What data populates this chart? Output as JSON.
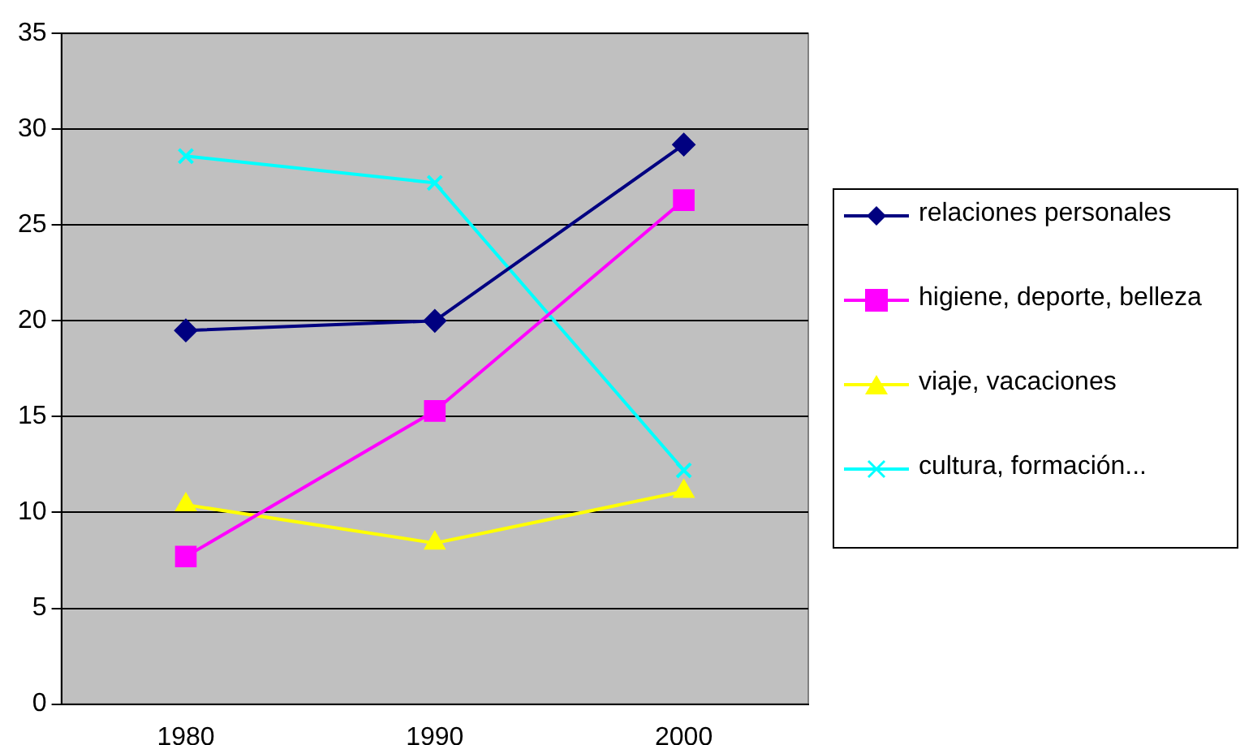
{
  "chart_data": {
    "type": "line",
    "categories": [
      "1980",
      "1990",
      "2000"
    ],
    "ylim": [
      0,
      35
    ],
    "yticks": [
      0,
      5,
      10,
      15,
      20,
      25,
      30,
      35
    ],
    "grid": "y",
    "legend": "right",
    "line_style": "solid",
    "series": [
      {
        "name": "relaciones personales",
        "color": "#000080",
        "marker": "diamond",
        "values": [
          19.5,
          20,
          29.2
        ]
      },
      {
        "name": "higiene, deporte, belleza",
        "color": "#ff00ff",
        "marker": "square",
        "values": [
          7.7,
          15.3,
          26.3
        ]
      },
      {
        "name": "viaje, vacaciones",
        "color": "#ffff00",
        "marker": "triangle",
        "values": [
          10.4,
          8.4,
          11.1
        ]
      },
      {
        "name": "cultura, formación...",
        "color": "#00ffff",
        "marker": "cross",
        "values": [
          28.6,
          27.2,
          12.2
        ]
      }
    ]
  }
}
